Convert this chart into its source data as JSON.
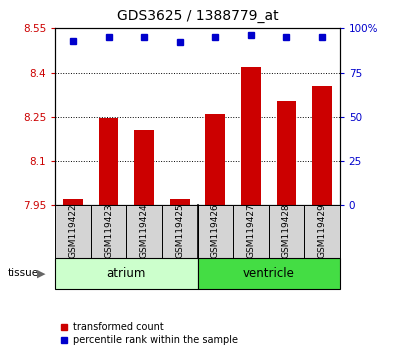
{
  "title": "GDS3625 / 1388779_at",
  "samples": [
    "GSM119422",
    "GSM119423",
    "GSM119424",
    "GSM119425",
    "GSM119426",
    "GSM119427",
    "GSM119428",
    "GSM119429"
  ],
  "red_values": [
    7.97,
    8.245,
    8.205,
    7.97,
    8.26,
    8.42,
    8.305,
    8.355
  ],
  "blue_values": [
    93,
    95,
    95,
    92,
    95,
    96,
    95,
    95
  ],
  "ylim_left": [
    7.95,
    8.55
  ],
  "ylim_right": [
    0,
    100
  ],
  "yticks_left": [
    7.95,
    8.1,
    8.25,
    8.4,
    8.55
  ],
  "yticks_right": [
    0,
    25,
    50,
    75,
    100
  ],
  "ytick_labels_left": [
    "7.95",
    "8.1",
    "8.25",
    "8.4",
    "8.55"
  ],
  "ytick_labels_right": [
    "0",
    "25",
    "50",
    "75",
    "100%"
  ],
  "groups": [
    {
      "name": "atrium",
      "color": "#ccffcc"
    },
    {
      "name": "ventricle",
      "color": "#44dd44"
    }
  ],
  "bar_color": "#cc0000",
  "dot_color": "#0000cc",
  "bar_width": 0.55,
  "baseline": 7.95,
  "tissue_label": "tissue",
  "legend_red_label": "transformed count",
  "legend_blue_label": "percentile rank within the sample"
}
